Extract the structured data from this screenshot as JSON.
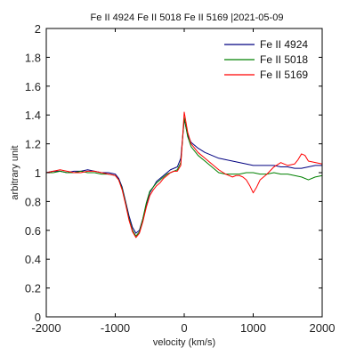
{
  "chart_data": {
    "type": "line",
    "title": "Fe II 4924 Fe II 5018 Fe II 5169  |2021-05-09",
    "xlabel": "velocity (km/s)",
    "ylabel": "arbitrary unit",
    "xlim": [
      -2000,
      2000
    ],
    "ylim": [
      0,
      2
    ],
    "xticks": [
      -2000,
      -1000,
      0,
      1000,
      2000
    ],
    "xtick_labels": [
      "-2000",
      "-1000",
      "0",
      "1000",
      "2000"
    ],
    "yticks": [
      0,
      0.2,
      0.4,
      0.6,
      0.8,
      1,
      1.2,
      1.4,
      1.6,
      1.8,
      2
    ],
    "ytick_labels": [
      "0",
      "0.2",
      "0.4",
      "0.6",
      "0.8",
      "1",
      "1.2",
      "1.4",
      "1.6",
      "1.8",
      "2"
    ],
    "grid": false,
    "legend_position": "top-right",
    "series": [
      {
        "name": "Fe II 4924",
        "color": "#000080",
        "x": [
          -2000,
          -1900,
          -1800,
          -1700,
          -1600,
          -1500,
          -1400,
          -1300,
          -1200,
          -1100,
          -1000,
          -950,
          -900,
          -850,
          -800,
          -750,
          -700,
          -650,
          -600,
          -550,
          -500,
          -450,
          -400,
          -350,
          -300,
          -250,
          -200,
          -150,
          -100,
          -50,
          0,
          50,
          100,
          200,
          300,
          400,
          500,
          600,
          700,
          800,
          900,
          1000,
          1100,
          1200,
          1300,
          1400,
          1500,
          1600,
          1700,
          1800,
          1900,
          2000
        ],
        "y": [
          1.0,
          1.01,
          1.01,
          1.0,
          1.01,
          1.01,
          1.02,
          1.01,
          1.0,
          1.0,
          0.99,
          0.96,
          0.9,
          0.8,
          0.7,
          0.62,
          0.58,
          0.6,
          0.68,
          0.78,
          0.86,
          0.9,
          0.94,
          0.96,
          0.98,
          1.0,
          1.02,
          1.03,
          1.04,
          1.1,
          1.37,
          1.26,
          1.21,
          1.17,
          1.14,
          1.12,
          1.1,
          1.09,
          1.08,
          1.07,
          1.06,
          1.05,
          1.05,
          1.05,
          1.05,
          1.04,
          1.04,
          1.03,
          1.03,
          1.04,
          1.05,
          1.05
        ]
      },
      {
        "name": "Fe II 5018",
        "color": "#008000",
        "x": [
          -2000,
          -1900,
          -1800,
          -1700,
          -1600,
          -1500,
          -1400,
          -1300,
          -1200,
          -1100,
          -1000,
          -950,
          -900,
          -850,
          -800,
          -750,
          -700,
          -650,
          -600,
          -550,
          -500,
          -450,
          -400,
          -350,
          -300,
          -250,
          -200,
          -150,
          -100,
          -50,
          0,
          50,
          100,
          200,
          300,
          400,
          500,
          600,
          700,
          800,
          900,
          1000,
          1100,
          1200,
          1300,
          1400,
          1500,
          1600,
          1700,
          1800,
          1900,
          2000
        ],
        "y": [
          1.0,
          1.0,
          1.01,
          1.0,
          1.0,
          1.01,
          1.0,
          1.0,
          0.99,
          0.99,
          0.98,
          0.95,
          0.89,
          0.79,
          0.68,
          0.6,
          0.56,
          0.59,
          0.68,
          0.79,
          0.87,
          0.9,
          0.93,
          0.95,
          0.97,
          0.99,
          1.0,
          1.01,
          1.02,
          1.07,
          1.38,
          1.25,
          1.18,
          1.12,
          1.08,
          1.04,
          1.0,
          0.99,
          0.99,
          0.99,
          1.0,
          1.0,
          0.99,
          0.99,
          1.0,
          0.99,
          0.99,
          0.98,
          0.97,
          0.95,
          0.97,
          0.98
        ]
      },
      {
        "name": "Fe II 5169",
        "color": "#ff0000",
        "x": [
          -2000,
          -1900,
          -1800,
          -1700,
          -1600,
          -1500,
          -1400,
          -1300,
          -1200,
          -1100,
          -1000,
          -950,
          -900,
          -850,
          -800,
          -750,
          -700,
          -650,
          -600,
          -550,
          -500,
          -450,
          -400,
          -350,
          -300,
          -250,
          -200,
          -150,
          -100,
          -50,
          0,
          50,
          100,
          200,
          300,
          400,
          500,
          600,
          700,
          750,
          800,
          850,
          900,
          950,
          1000,
          1050,
          1100,
          1200,
          1300,
          1400,
          1500,
          1600,
          1650,
          1700,
          1750,
          1800,
          1900,
          2000
        ],
        "y": [
          1.0,
          1.01,
          1.02,
          1.01,
          1.0,
          1.0,
          1.01,
          1.01,
          1.0,
          0.99,
          0.98,
          0.95,
          0.88,
          0.78,
          0.67,
          0.59,
          0.55,
          0.58,
          0.66,
          0.76,
          0.84,
          0.88,
          0.91,
          0.93,
          0.96,
          0.98,
          1.0,
          1.01,
          1.01,
          1.05,
          1.42,
          1.28,
          1.2,
          1.14,
          1.1,
          1.06,
          1.02,
          0.99,
          0.97,
          0.98,
          0.98,
          0.97,
          0.95,
          0.91,
          0.86,
          0.9,
          0.95,
          0.99,
          1.04,
          1.07,
          1.05,
          1.06,
          1.09,
          1.13,
          1.12,
          1.08,
          1.07,
          1.06
        ]
      }
    ]
  }
}
